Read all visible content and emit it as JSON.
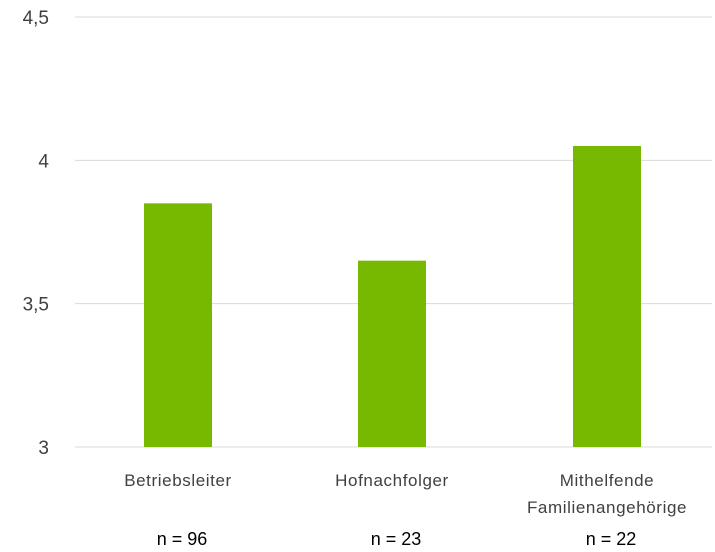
{
  "chart_data": {
    "type": "bar",
    "title": "",
    "xlabel": "",
    "ylabel": "",
    "categories": [
      [
        "Betriebsleiter"
      ],
      [
        "Hofnachfolger"
      ],
      [
        "Mithelfende",
        "Familienangehörige"
      ]
    ],
    "values": [
      3.85,
      3.65,
      4.05
    ],
    "sample_sizes": [
      "n = 96",
      "n = 23",
      "n = 22"
    ],
    "ylim": [
      3,
      4.5
    ],
    "yticks": [
      3,
      3.5,
      4,
      4.5
    ],
    "ytick_labels": [
      "3",
      "3,5",
      "4",
      "4,5"
    ],
    "grid": true,
    "legend": "none",
    "bar_color": "#76b900",
    "grid_color": "#d9d9d9",
    "text_color": "#404040"
  }
}
